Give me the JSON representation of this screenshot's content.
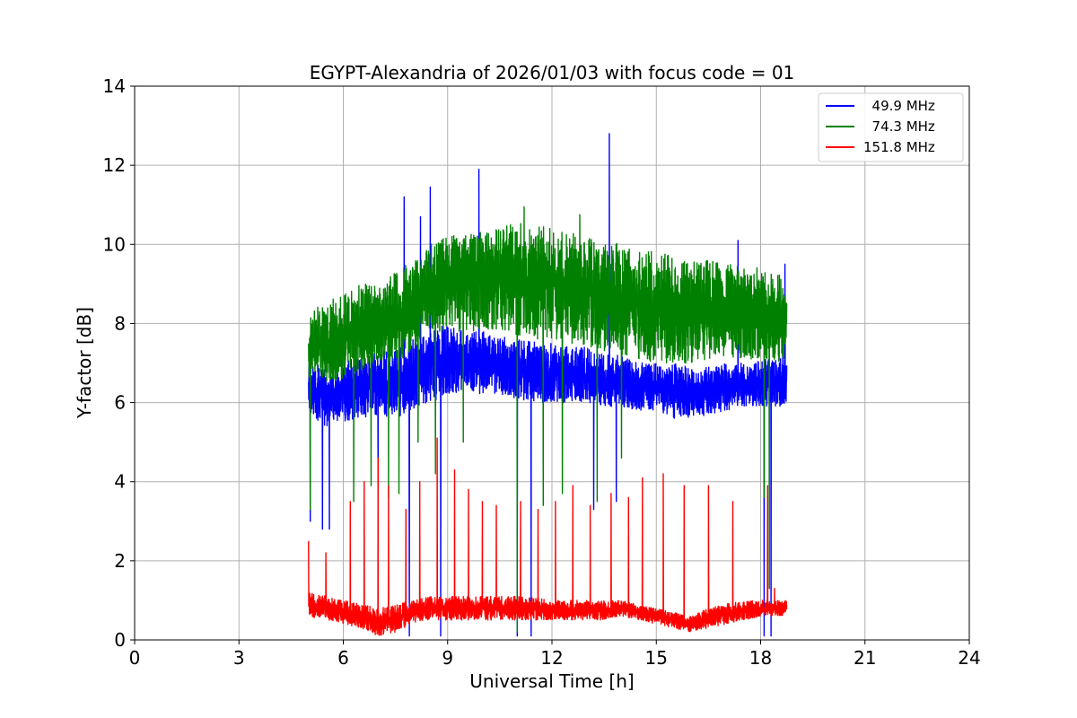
{
  "chart_data": {
    "type": "line",
    "title": "EGYPT-Alexandria of 2026/01/03 with focus code = 01",
    "xlabel": "Universal Time [h]",
    "ylabel": "Y-factor [dB]",
    "xlim": [
      0,
      24
    ],
    "ylim": [
      0,
      14
    ],
    "xticks": [
      0,
      3,
      6,
      9,
      12,
      15,
      18,
      21,
      24
    ],
    "yticks": [
      0,
      2,
      4,
      6,
      8,
      10,
      12,
      14
    ],
    "grid": true,
    "legend_position": "top-right",
    "series": [
      {
        "name": "  49.9 MHz",
        "color": "#0000ff",
        "x": [
          5.0,
          5.2,
          5.5,
          6.0,
          6.5,
          7.0,
          7.5,
          8.0,
          8.5,
          9.0,
          9.5,
          10.0,
          10.5,
          11.0,
          11.5,
          12.0,
          12.5,
          13.0,
          13.5,
          14.0,
          14.5,
          15.0,
          15.5,
          16.0,
          16.5,
          17.0,
          17.5,
          18.0,
          18.5,
          18.75
        ],
        "low": [
          5.8,
          5.6,
          5.4,
          5.5,
          5.6,
          5.7,
          5.6,
          5.8,
          6.0,
          6.2,
          6.3,
          6.2,
          6.2,
          6.1,
          6.0,
          6.0,
          6.0,
          6.0,
          5.9,
          5.9,
          5.8,
          5.8,
          5.6,
          5.6,
          5.7,
          5.8,
          5.9,
          5.9,
          5.9,
          5.9
        ],
        "high": [
          7.0,
          7.0,
          6.8,
          7.0,
          7.2,
          7.3,
          7.4,
          7.6,
          7.8,
          8.0,
          7.8,
          7.8,
          7.7,
          7.6,
          7.6,
          7.5,
          7.4,
          7.4,
          7.2,
          7.2,
          7.0,
          7.0,
          7.0,
          6.9,
          6.9,
          7.0,
          7.0,
          7.1,
          7.1,
          7.2
        ],
        "spikes": [
          [
            7.75,
            11.2
          ],
          [
            8.22,
            10.7
          ],
          [
            8.5,
            11.45
          ],
          [
            9.9,
            11.9
          ],
          [
            13.65,
            12.8
          ],
          [
            17.35,
            10.1
          ],
          [
            18.7,
            9.5
          ]
        ],
        "dips": [
          [
            5.05,
            3.0
          ],
          [
            5.4,
            2.8
          ],
          [
            5.6,
            2.8
          ],
          [
            7.0,
            3.6
          ],
          [
            7.9,
            0.1
          ],
          [
            8.8,
            0.1
          ],
          [
            11.0,
            0.1
          ],
          [
            11.4,
            0.1
          ],
          [
            13.2,
            3.3
          ],
          [
            13.85,
            3.5
          ],
          [
            18.1,
            0.1
          ],
          [
            18.3,
            0.1
          ]
        ]
      },
      {
        "name": "  74.3 MHz",
        "color": "#008000",
        "x": [
          5.0,
          5.2,
          5.5,
          6.0,
          6.5,
          7.0,
          7.5,
          8.0,
          8.5,
          9.0,
          9.5,
          10.0,
          10.5,
          11.0,
          11.5,
          12.0,
          12.5,
          13.0,
          13.5,
          14.0,
          14.5,
          15.0,
          15.5,
          16.0,
          16.5,
          17.0,
          17.5,
          18.0,
          18.5,
          18.75
        ],
        "low": [
          6.5,
          6.8,
          6.5,
          6.6,
          6.8,
          6.9,
          7.0,
          7.3,
          7.7,
          7.8,
          7.8,
          7.8,
          7.8,
          7.6,
          7.6,
          7.6,
          7.5,
          7.4,
          7.3,
          7.2,
          7.1,
          7.0,
          7.0,
          7.0,
          7.1,
          7.1,
          7.1,
          7.1,
          7.0,
          7.1
        ],
        "high": [
          8.1,
          8.4,
          8.5,
          8.8,
          9.0,
          9.0,
          9.3,
          9.6,
          10.0,
          10.2,
          10.3,
          10.3,
          10.4,
          10.6,
          10.5,
          10.4,
          10.3,
          10.2,
          10.1,
          10.0,
          9.9,
          9.8,
          9.7,
          9.6,
          9.6,
          9.5,
          9.5,
          9.4,
          9.3,
          9.0
        ],
        "spikes": [
          [
            11.2,
            10.95
          ],
          [
            12.8,
            10.75
          ]
        ],
        "dips": [
          [
            5.05,
            3.3
          ],
          [
            6.3,
            3.5
          ],
          [
            6.8,
            3.9
          ],
          [
            7.3,
            3.6
          ],
          [
            7.6,
            3.7
          ],
          [
            8.15,
            5.0
          ],
          [
            8.65,
            4.2
          ],
          [
            9.45,
            5.0
          ],
          [
            11.0,
            0.2
          ],
          [
            11.75,
            3.4
          ],
          [
            12.3,
            3.7
          ],
          [
            13.3,
            3.5
          ],
          [
            14.0,
            4.6
          ],
          [
            18.1,
            3.6
          ],
          [
            18.25,
            1.3
          ]
        ]
      },
      {
        "name": "151.8 MHz",
        "color": "#ff0000",
        "x": [
          5.0,
          5.2,
          5.5,
          6.0,
          6.5,
          7.0,
          7.5,
          8.0,
          8.5,
          9.0,
          9.5,
          10.0,
          10.5,
          11.0,
          11.5,
          12.0,
          12.5,
          13.0,
          13.5,
          14.0,
          14.5,
          15.0,
          15.5,
          16.0,
          16.5,
          17.0,
          17.5,
          18.0,
          18.5,
          18.75
        ],
        "low": [
          0.6,
          0.55,
          0.5,
          0.4,
          0.3,
          0.1,
          0.2,
          0.4,
          0.5,
          0.5,
          0.5,
          0.5,
          0.5,
          0.5,
          0.5,
          0.5,
          0.5,
          0.5,
          0.5,
          0.6,
          0.5,
          0.4,
          0.3,
          0.2,
          0.3,
          0.4,
          0.5,
          0.6,
          0.6,
          0.6
        ],
        "high": [
          1.2,
          1.2,
          1.1,
          1.0,
          0.9,
          0.8,
          0.9,
          1.0,
          1.1,
          1.1,
          1.1,
          1.1,
          1.1,
          1.1,
          1.1,
          1.0,
          1.0,
          1.0,
          1.0,
          1.0,
          0.9,
          0.8,
          0.7,
          0.6,
          0.8,
          0.9,
          1.0,
          1.0,
          1.0,
          1.0
        ],
        "spikes": [
          [
            5.0,
            2.5
          ],
          [
            5.5,
            2.2
          ],
          [
            6.2,
            3.5
          ],
          [
            6.6,
            4.0
          ],
          [
            7.0,
            4.6
          ],
          [
            7.3,
            3.9
          ],
          [
            7.8,
            3.3
          ],
          [
            8.2,
            4.0
          ],
          [
            8.7,
            5.1
          ],
          [
            9.2,
            4.3
          ],
          [
            9.6,
            3.8
          ],
          [
            10.0,
            3.5
          ],
          [
            10.4,
            3.4
          ],
          [
            11.1,
            3.5
          ],
          [
            11.6,
            3.3
          ],
          [
            12.1,
            3.5
          ],
          [
            12.6,
            3.9
          ],
          [
            13.1,
            3.4
          ],
          [
            13.7,
            3.7
          ],
          [
            14.2,
            3.6
          ],
          [
            14.6,
            4.1
          ],
          [
            15.2,
            4.2
          ],
          [
            15.8,
            3.9
          ],
          [
            16.5,
            3.9
          ],
          [
            17.2,
            3.5
          ],
          [
            18.2,
            3.9
          ],
          [
            18.4,
            1.3
          ]
        ]
      }
    ]
  }
}
